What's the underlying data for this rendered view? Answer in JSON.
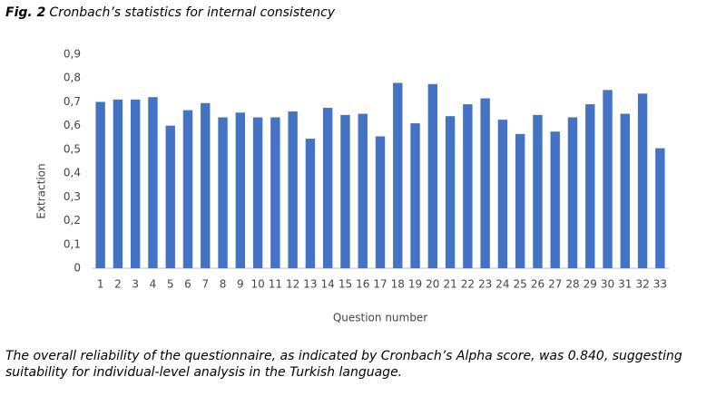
{
  "chart_data": {
    "type": "bar",
    "figure_label": "Fig. 2",
    "title": "Cronbach’s statistics for internal consistency",
    "x_label": "Question number",
    "y_label": "Extraction",
    "caption": "The overall reliability of the questionnaire, as indicated by Cronbach’s Alpha score, was 0.840, suggesting suitability for individual-level analysis in the Turkish language.",
    "categories": [
      "1",
      "2",
      "3",
      "4",
      "5",
      "6",
      "7",
      "8",
      "9",
      "10",
      "11",
      "12",
      "13",
      "14",
      "15",
      "16",
      "17",
      "18",
      "19",
      "20",
      "21",
      "22",
      "23",
      "24",
      "25",
      "26",
      "27",
      "28",
      "29",
      "30",
      "31",
      "32",
      "33"
    ],
    "values": [
      0.7,
      0.71,
      0.71,
      0.72,
      0.6,
      0.665,
      0.695,
      0.635,
      0.655,
      0.635,
      0.635,
      0.66,
      0.545,
      0.675,
      0.645,
      0.65,
      0.555,
      0.78,
      0.61,
      0.775,
      0.64,
      0.69,
      0.715,
      0.625,
      0.565,
      0.645,
      0.575,
      0.635,
      0.69,
      0.75,
      0.65,
      0.735,
      0.505
    ],
    "color": "#4472c4",
    "ylim": [
      0,
      0.9
    ],
    "yticks": [
      0,
      {
        "value": 0.1,
        "label": "0,1"
      },
      {
        "value": 0.2,
        "label": "0,2"
      },
      {
        "value": 0.3,
        "label": "0,3"
      },
      {
        "value": 0.4,
        "label": "0,4"
      },
      {
        "value": 0.5,
        "label": "0,5"
      },
      {
        "value": 0.6,
        "label": "0,6"
      },
      {
        "value": 0.7,
        "label": "0,7"
      },
      {
        "value": 0.8,
        "label": "0,8"
      },
      {
        "value": 0.9,
        "label": "0,9"
      }
    ],
    "grid": false
  }
}
